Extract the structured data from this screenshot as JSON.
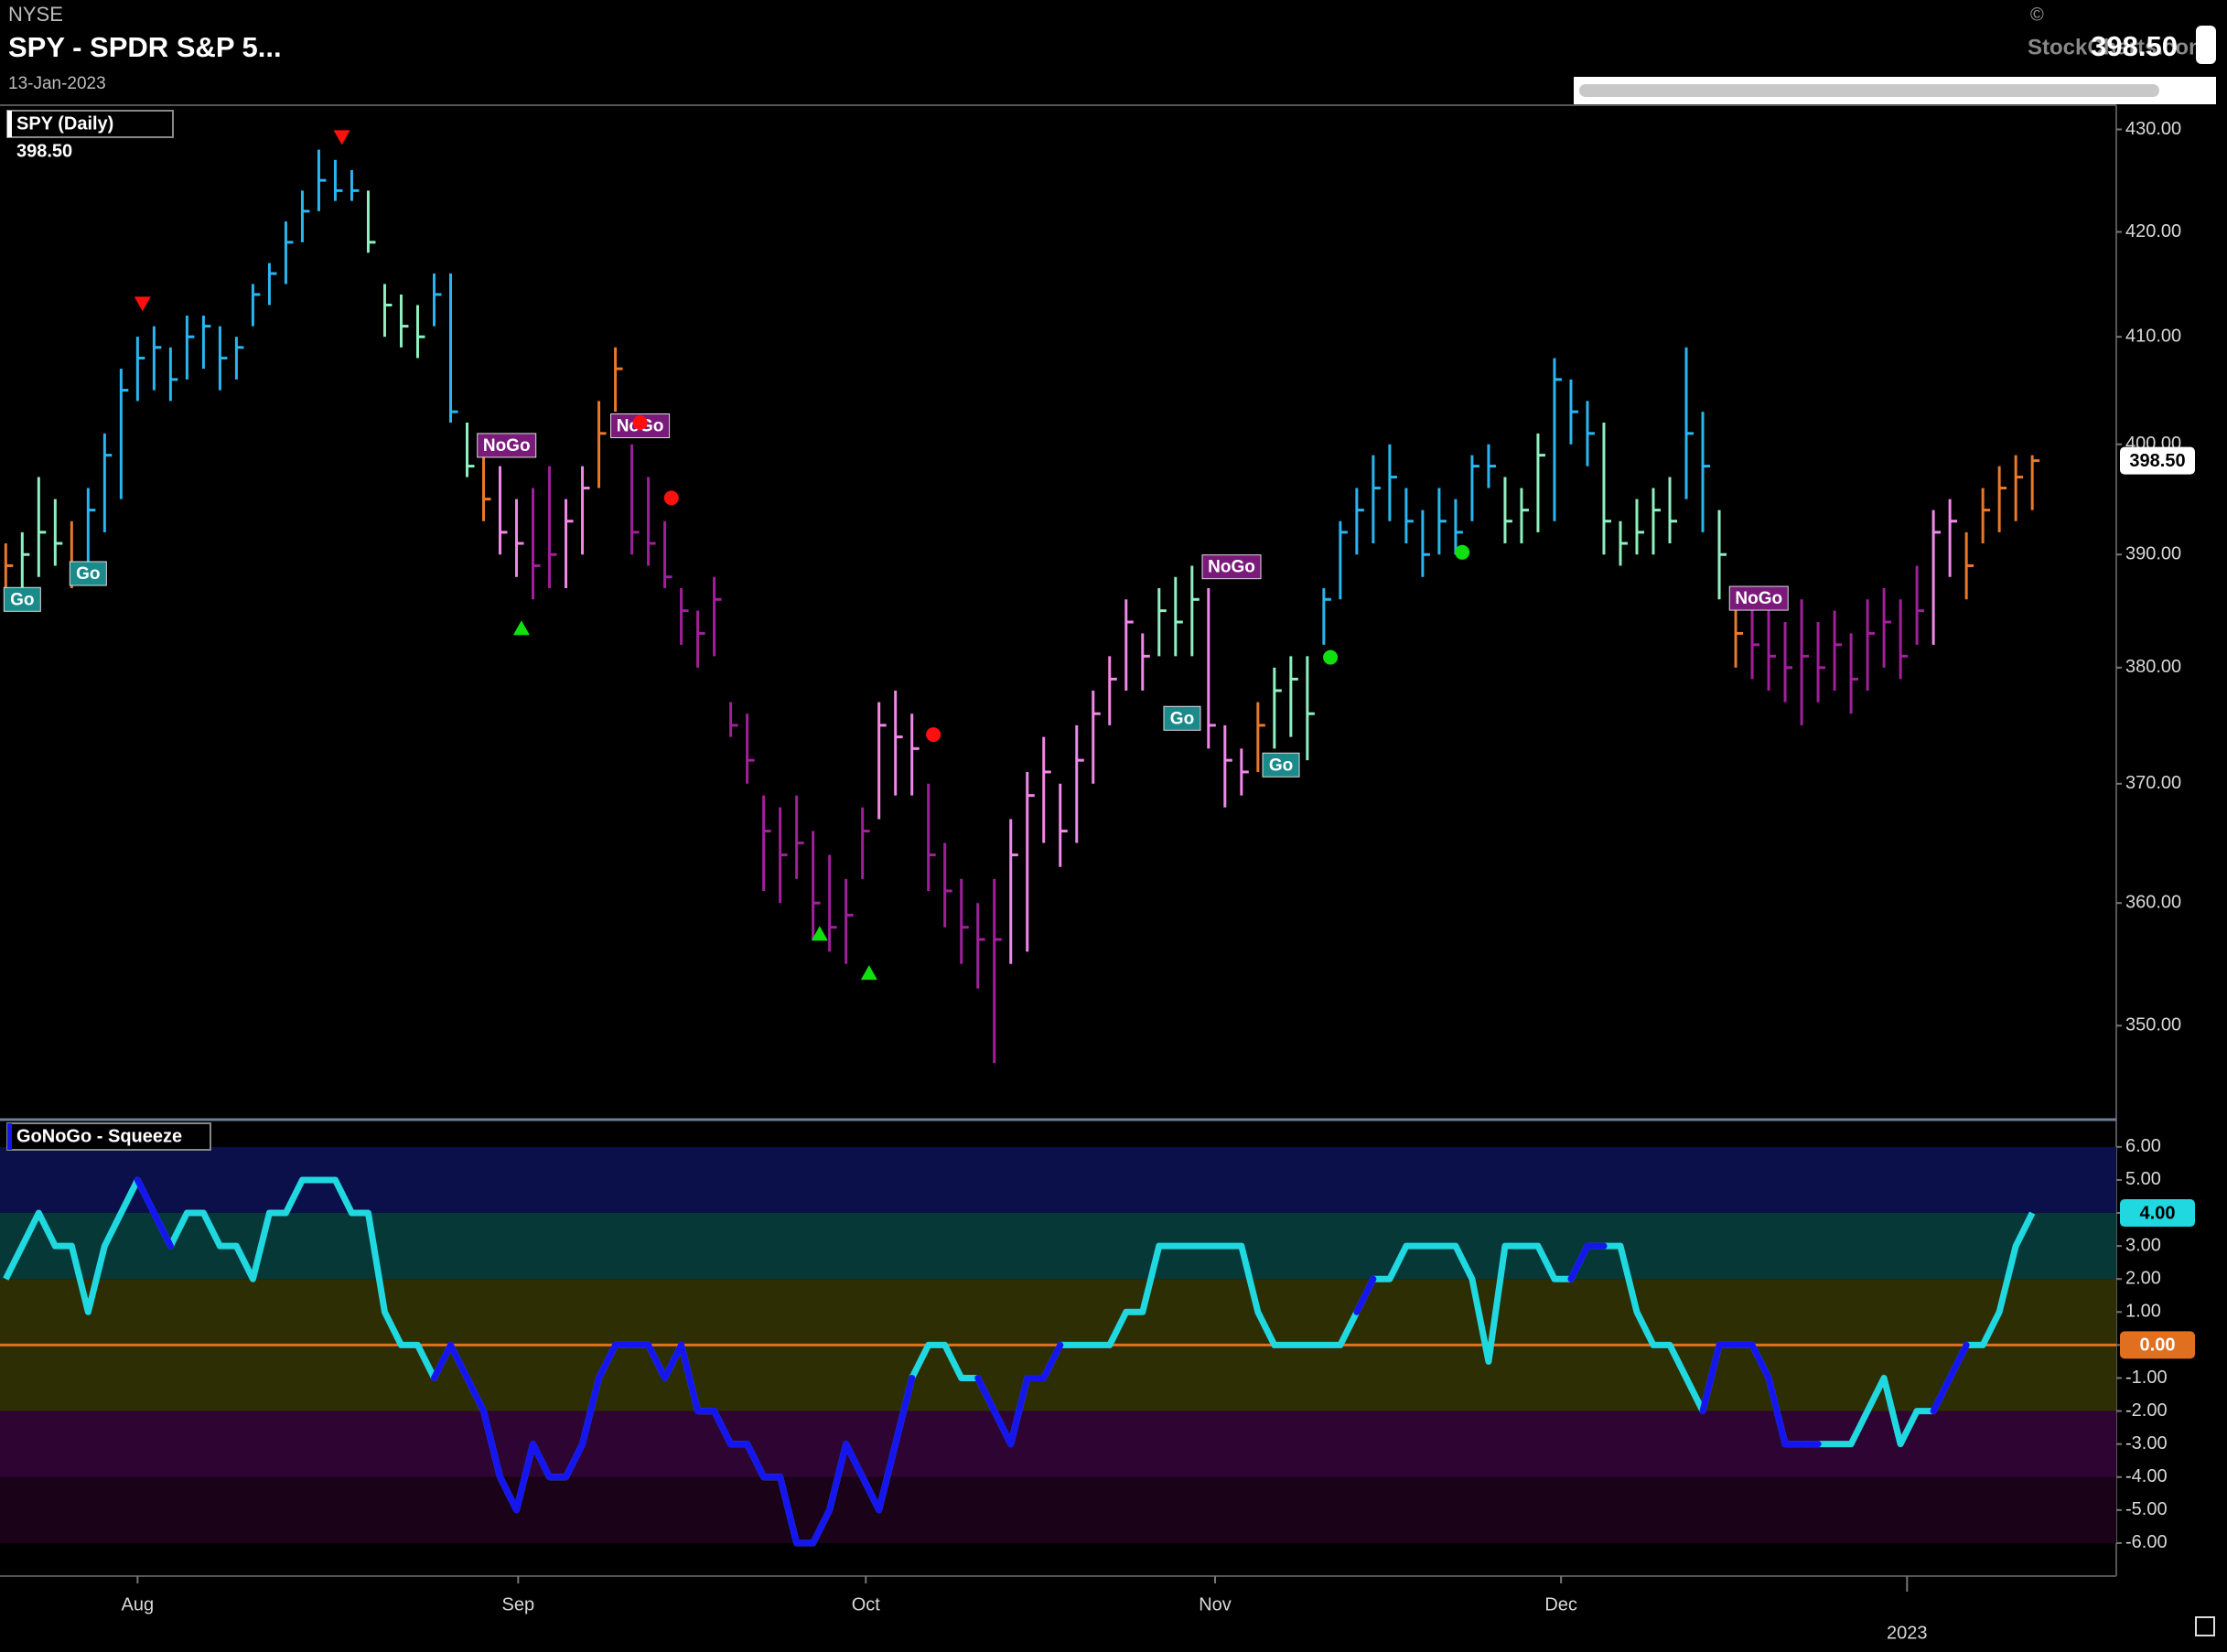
{
  "header": {
    "exchange": "NYSE",
    "title": "SPY - SPDR S&P 5...",
    "date": "13-Jan-2023",
    "copyright": "©",
    "source": "StockCharts.com",
    "price": "398.50"
  },
  "chart_data": [
    {
      "type": "ohlc",
      "legend": "SPY (Daily)",
      "legend_value": "398.50",
      "log_scale": true,
      "xlim": [
        -0.35,
        128.1
      ],
      "ylim": [
        342.6,
        432.4
      ],
      "yticks": [
        {
          "value": 350,
          "label": "350.00"
        },
        {
          "value": 360,
          "label": "360.00"
        },
        {
          "value": 370,
          "label": "370.00"
        },
        {
          "value": 380,
          "label": "380.00"
        },
        {
          "value": 390,
          "label": "390.00"
        },
        {
          "value": 400,
          "label": "400.00"
        },
        {
          "value": 410,
          "label": "410.00"
        },
        {
          "value": 420,
          "label": "420.00"
        },
        {
          "value": 430,
          "label": "430.00"
        }
      ],
      "high": [
        391,
        392,
        397,
        395,
        393,
        396,
        401,
        407,
        410,
        411,
        409,
        412,
        412,
        411,
        410,
        415,
        417,
        421,
        424,
        428,
        427,
        426,
        424,
        415,
        414,
        413,
        416,
        416,
        402,
        400,
        398,
        395,
        396,
        398,
        395,
        398,
        404,
        409,
        400,
        397,
        393,
        387,
        385,
        388,
        377,
        376,
        369,
        368,
        369,
        366,
        364,
        362,
        368,
        377,
        378,
        376,
        370,
        365,
        362,
        360,
        362,
        367,
        371,
        374,
        370,
        375,
        378,
        381,
        386,
        383,
        387,
        388,
        389,
        387,
        375,
        373,
        377,
        380,
        381,
        381,
        387,
        393,
        396,
        399,
        400,
        396,
        394,
        396,
        395,
        399,
        400,
        397,
        396,
        401,
        408,
        406,
        404,
        402,
        393,
        395,
        396,
        397,
        409,
        403,
        394,
        387,
        386,
        385,
        384,
        386,
        384,
        385,
        383,
        386,
        387,
        386,
        389,
        394,
        395,
        392,
        396,
        398,
        399,
        399
      ],
      "low": [
        386,
        387,
        388,
        389,
        387,
        389,
        392,
        395,
        404,
        405,
        404,
        406,
        407,
        405,
        406,
        411,
        413,
        415,
        419,
        422,
        423,
        423,
        418,
        410,
        409,
        408,
        411,
        402,
        397,
        393,
        390,
        388,
        386,
        387,
        387,
        390,
        396,
        403,
        390,
        389,
        387,
        382,
        380,
        381,
        374,
        370,
        361,
        360,
        362,
        357,
        356,
        355,
        362,
        367,
        369,
        369,
        361,
        358,
        355,
        353,
        347,
        355,
        356,
        365,
        363,
        365,
        370,
        375,
        378,
        378,
        381,
        381,
        381,
        373,
        368,
        369,
        371,
        373,
        374,
        372,
        382,
        386,
        390,
        391,
        393,
        391,
        388,
        390,
        390,
        393,
        396,
        391,
        391,
        392,
        393,
        400,
        398,
        390,
        389,
        390,
        390,
        391,
        395,
        392,
        386,
        380,
        379,
        378,
        377,
        375,
        377,
        378,
        376,
        378,
        380,
        379,
        382,
        382,
        388,
        386,
        391,
        392,
        393,
        394
      ],
      "close": [
        389,
        390,
        392,
        391,
        389,
        394,
        399,
        405,
        408,
        409,
        406,
        410,
        411,
        408,
        409,
        414,
        416,
        419,
        422,
        425,
        424,
        424,
        419,
        413,
        411,
        410,
        414,
        403,
        398,
        395,
        392,
        391,
        389,
        390,
        393,
        396,
        401,
        407,
        392,
        391,
        388,
        385,
        383,
        386,
        375,
        372,
        366,
        364,
        365,
        360,
        358,
        359,
        366,
        375,
        374,
        373,
        364,
        361,
        358,
        357,
        357,
        364,
        369,
        371,
        366,
        372,
        376,
        379,
        384,
        381,
        385,
        384,
        386,
        375,
        372,
        371,
        375,
        378,
        379,
        376,
        386,
        392,
        394,
        396,
        397,
        393,
        390,
        393,
        392,
        398,
        398,
        393,
        394,
        399,
        406,
        403,
        401,
        393,
        391,
        392,
        394,
        393,
        401,
        398,
        390,
        383,
        382,
        381,
        380,
        381,
        380,
        382,
        379,
        383,
        384,
        381,
        385,
        392,
        393,
        389,
        394,
        396,
        397,
        398.5
      ],
      "colors": [
        "#e8792b",
        "#8ef0c0",
        "#8ef0c0",
        "#8ef0c0",
        "#e8792b",
        "#29b6f0",
        "#29b6f0",
        "#29b6f0",
        "#29b6f0",
        "#29b6f0",
        "#29b6f0",
        "#29b6f0",
        "#29b6f0",
        "#29b6f0",
        "#29b6f0",
        "#29b6f0",
        "#29b6f0",
        "#29b6f0",
        "#29b6f0",
        "#29b6f0",
        "#29b6f0",
        "#29b6f0",
        "#8ef0c0",
        "#8ef0c0",
        "#8ef0c0",
        "#8ef0c0",
        "#29b6f0",
        "#29b6f0",
        "#8ef0c0",
        "#e8792b",
        "#f088e8",
        "#f088e8",
        "#a0209a",
        "#a0209a",
        "#f088e8",
        "#f088e8",
        "#e8792b",
        "#e8792b",
        "#a0209a",
        "#a0209a",
        "#a0209a",
        "#a0209a",
        "#a0209a",
        "#a0209a",
        "#a0209a",
        "#a0209a",
        "#a0209a",
        "#a0209a",
        "#a0209a",
        "#a0209a",
        "#a0209a",
        "#a0209a",
        "#a0209a",
        "#f088e8",
        "#f088e8",
        "#f088e8",
        "#a0209a",
        "#a0209a",
        "#a0209a",
        "#a0209a",
        "#a0209a",
        "#f088e8",
        "#f088e8",
        "#f088e8",
        "#f088e8",
        "#f088e8",
        "#f088e8",
        "#f088e8",
        "#f088e8",
        "#f088e8",
        "#8ef0c0",
        "#8ef0c0",
        "#8ef0c0",
        "#f088e8",
        "#f088e8",
        "#f088e8",
        "#e8792b",
        "#8ef0c0",
        "#8ef0c0",
        "#8ef0c0",
        "#29b6f0",
        "#29b6f0",
        "#29b6f0",
        "#29b6f0",
        "#29b6f0",
        "#29b6f0",
        "#29b6f0",
        "#29b6f0",
        "#29b6f0",
        "#29b6f0",
        "#29b6f0",
        "#8ef0c0",
        "#8ef0c0",
        "#8ef0c0",
        "#29b6f0",
        "#29b6f0",
        "#29b6f0",
        "#8ef0c0",
        "#8ef0c0",
        "#8ef0c0",
        "#8ef0c0",
        "#8ef0c0",
        "#29b6f0",
        "#29b6f0",
        "#8ef0c0",
        "#e8792b",
        "#a0209a",
        "#a0209a",
        "#a0209a",
        "#a0209a",
        "#a0209a",
        "#a0209a",
        "#a0209a",
        "#a0209a",
        "#a0209a",
        "#a0209a",
        "#a0209a",
        "#f088e8",
        "#f088e8",
        "#e8792b",
        "#e8792b",
        "#e8792b",
        "#e8792b",
        "#e8792b"
      ],
      "signals": [
        {
          "shape": "label",
          "text": "Go",
          "color": "#1a8a8a",
          "x": 1,
          "y": 386
        },
        {
          "shape": "label",
          "text": "Go",
          "color": "#1a8a8a",
          "x": 5,
          "y": 388.3
        },
        {
          "shape": "label",
          "text": "NoGo",
          "color": "#7a1a7a",
          "x": 30.4,
          "y": 399.9
        },
        {
          "shape": "label",
          "text": "NoGo",
          "color": "#7a1a7a",
          "x": 38.5,
          "y": 401.7
        },
        {
          "shape": "label",
          "text": "Go",
          "color": "#1a8a8a",
          "x": 71.4,
          "y": 375.6
        },
        {
          "shape": "label",
          "text": "NoGo",
          "color": "#7a1a7a",
          "x": 74.4,
          "y": 388.9
        },
        {
          "shape": "label",
          "text": "Go",
          "color": "#1a8a8a",
          "x": 77.4,
          "y": 371.6
        },
        {
          "shape": "label",
          "text": "NoGo",
          "color": "#7a1a7a",
          "x": 106.4,
          "y": 386.1
        },
        {
          "shape": "triangle-down",
          "color": "#ff1010",
          "x": 8.3,
          "y": 413.1
        },
        {
          "shape": "triangle-down",
          "color": "#ff1010",
          "x": 20.4,
          "y": 429.2
        },
        {
          "shape": "triangle-up",
          "color": "#10e010",
          "x": 31.3,
          "y": 383.5
        },
        {
          "shape": "triangle-up",
          "color": "#10e010",
          "x": 49.4,
          "y": 357.5
        },
        {
          "shape": "triangle-up",
          "color": "#10e010",
          "x": 52.4,
          "y": 354.3
        },
        {
          "shape": "dot",
          "color": "#ff1010",
          "x": 38.5,
          "y": 402
        },
        {
          "shape": "dot",
          "color": "#ff1010",
          "x": 40.4,
          "y": 395.1
        },
        {
          "shape": "dot",
          "color": "#ff1010",
          "x": 56.3,
          "y": 374.2
        },
        {
          "shape": "dot",
          "color": "#10e010",
          "x": 80.4,
          "y": 380.9
        },
        {
          "shape": "dot",
          "color": "#10e010",
          "x": 88.4,
          "y": 390.2
        }
      ],
      "tag": {
        "value": 398.5,
        "label": "398.50"
      }
    },
    {
      "type": "line",
      "legend": "GoNoGo - Squeeze",
      "xlim": [
        -0.35,
        128.1
      ],
      "ylim": [
        -7,
        6.8
      ],
      "xticks": [
        {
          "value": 8,
          "label": "Aug"
        },
        {
          "value": 31.1,
          "label": "Sep"
        },
        {
          "value": 52.2,
          "label": "Oct"
        },
        {
          "value": 73.4,
          "label": "Nov"
        },
        {
          "value": 94.4,
          "label": "Dec"
        },
        {
          "value": 115.4,
          "label": "2023"
        }
      ],
      "yticks": [
        {
          "value": -6,
          "label": "-6.00"
        },
        {
          "value": -5,
          "label": "-5.00"
        },
        {
          "value": -4,
          "label": "-4.00"
        },
        {
          "value": -3,
          "label": "-3.00"
        },
        {
          "value": -2,
          "label": "-2.00"
        },
        {
          "value": -1,
          "label": "-1.00"
        },
        {
          "value": 0,
          "label": "0.00"
        },
        {
          "value": 1,
          "label": "1.00"
        },
        {
          "value": 2,
          "label": "2.00"
        },
        {
          "value": 3,
          "label": "3.00"
        },
        {
          "value": 4,
          "label": "4.00"
        },
        {
          "value": 5,
          "label": "5.00"
        },
        {
          "value": 6,
          "label": "6.00"
        }
      ],
      "bands": [
        {
          "from": 4,
          "to": 6,
          "color": "#0b0f4a"
        },
        {
          "from": 2,
          "to": 4,
          "color": "#063838"
        },
        {
          "from": -2,
          "to": 2,
          "color": "#2e2e05"
        },
        {
          "from": -4,
          "to": -2,
          "color": "#2e0433"
        },
        {
          "from": -6,
          "to": -4,
          "color": "#1a0318"
        }
      ],
      "values": [
        2,
        3,
        4,
        3,
        3,
        1,
        3,
        4,
        5,
        4,
        3,
        4,
        4,
        3,
        3,
        2,
        4,
        4,
        5,
        5,
        5,
        4,
        4,
        1,
        0,
        0,
        -1,
        0,
        -1,
        -2,
        -4,
        -5,
        -3,
        -4,
        -4,
        -3,
        -1,
        0,
        0,
        0,
        -1,
        0,
        -2,
        -2,
        -3,
        -3,
        -4,
        -4,
        -6,
        -6,
        -5,
        -3,
        -4,
        -5,
        -3,
        -1,
        0,
        0,
        -1,
        -1,
        -2,
        -3,
        -1,
        -1,
        0,
        0,
        0,
        0,
        1,
        1,
        3,
        3,
        3,
        3,
        3,
        3,
        1,
        0,
        0,
        0,
        0,
        0,
        1,
        2,
        2,
        3,
        3,
        3,
        3,
        2,
        -0.5,
        3,
        3,
        3,
        2,
        2,
        3,
        3,
        3,
        1,
        0,
        0,
        -1,
        -2,
        0,
        0,
        0,
        -1,
        -3,
        -3,
        -3,
        -3,
        -3,
        -2,
        -1,
        -3,
        -2,
        -2,
        -1,
        0,
        0,
        1,
        3,
        4
      ],
      "colors": [
        "#20d8e0",
        "#20d8e0",
        "#20d8e0",
        "#20d8e0",
        "#20d8e0",
        "#20d8e0",
        "#20d8e0",
        "#20d8e0",
        "#20d8e0",
        "#1515f0",
        "#1515f0",
        "#20d8e0",
        "#20d8e0",
        "#20d8e0",
        "#20d8e0",
        "#20d8e0",
        "#20d8e0",
        "#20d8e0",
        "#20d8e0",
        "#20d8e0",
        "#20d8e0",
        "#20d8e0",
        "#20d8e0",
        "#20d8e0",
        "#20d8e0",
        "#20d8e0",
        "#20d8e0",
        "#1515f0",
        "#1515f0",
        "#1515f0",
        "#1515f0",
        "#1515f0",
        "#1515f0",
        "#1515f0",
        "#1515f0",
        "#1515f0",
        "#1515f0",
        "#1515f0",
        "#1515f0",
        "#1515f0",
        "#1515f0",
        "#1515f0",
        "#1515f0",
        "#1515f0",
        "#1515f0",
        "#1515f0",
        "#1515f0",
        "#1515f0",
        "#1515f0",
        "#1515f0",
        "#1515f0",
        "#1515f0",
        "#1515f0",
        "#1515f0",
        "#1515f0",
        "#1515f0",
        "#20d8e0",
        "#20d8e0",
        "#20d8e0",
        "#20d8e0",
        "#1515f0",
        "#1515f0",
        "#1515f0",
        "#1515f0",
        "#1515f0",
        "#20d8e0",
        "#20d8e0",
        "#20d8e0",
        "#20d8e0",
        "#20d8e0",
        "#20d8e0",
        "#20d8e0",
        "#20d8e0",
        "#20d8e0",
        "#20d8e0",
        "#20d8e0",
        "#20d8e0",
        "#20d8e0",
        "#20d8e0",
        "#20d8e0",
        "#20d8e0",
        "#20d8e0",
        "#20d8e0",
        "#1515f0",
        "#20d8e0",
        "#20d8e0",
        "#20d8e0",
        "#20d8e0",
        "#20d8e0",
        "#20d8e0",
        "#20d8e0",
        "#20d8e0",
        "#20d8e0",
        "#20d8e0",
        "#20d8e0",
        "#20d8e0",
        "#1515f0",
        "#1515f0",
        "#20d8e0",
        "#20d8e0",
        "#20d8e0",
        "#20d8e0",
        "#20d8e0",
        "#20d8e0",
        "#1515f0",
        "#1515f0",
        "#1515f0",
        "#1515f0",
        "#1515f0",
        "#1515f0",
        "#1515f0",
        "#20d8e0",
        "#20d8e0",
        "#20d8e0",
        "#20d8e0",
        "#20d8e0",
        "#20d8e0",
        "#20d8e0",
        "#1515f0",
        "#1515f0",
        "#20d8e0",
        "#20d8e0",
        "#20d8e0",
        "#20d8e0"
      ],
      "tags": [
        {
          "value": 4,
          "label": "4.00",
          "color": "#20d8e0"
        },
        {
          "value": 0,
          "label": "0.00",
          "color": "#e07020"
        }
      ]
    }
  ]
}
